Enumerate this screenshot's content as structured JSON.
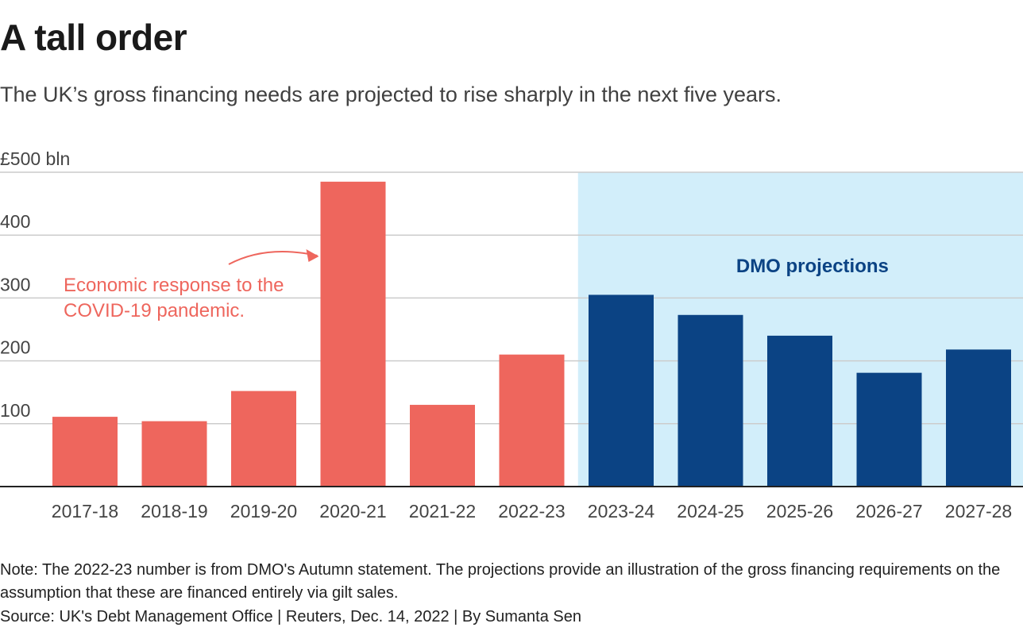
{
  "title": "A tall order",
  "subtitle": "The UK’s gross financing needs are projected to rise sharply in the next five years.",
  "note": "Note: The 2022-23 number is from DMO's Autumn statement. The projections provide an illustration of the gross financing requirements on the assumption that these are financed entirely via gilt sales.",
  "source": "Source: UK's Debt Management Office | Reuters, Dec. 14, 2022 | By Sumanta Sen",
  "colors": {
    "actual": "#ee665d",
    "projection": "#0b4384",
    "projection_band": "#d2eefa",
    "annotation": "#ee665d",
    "grid": "#cccccc",
    "axis": "#222222",
    "band_label": "#0b4384"
  },
  "chart_data": {
    "type": "bar",
    "categories": [
      "2017-18",
      "2018-19",
      "2019-20",
      "2020-21",
      "2021-22",
      "2022-23",
      "2023-24",
      "2024-25",
      "2025-26",
      "2026-27",
      "2027-28"
    ],
    "values": [
      111,
      104,
      152,
      485,
      130,
      210,
      305,
      273,
      240,
      181,
      218
    ],
    "projection_start_index": 6,
    "ylim": [
      0,
      500
    ],
    "yticks": [
      100,
      200,
      300,
      400,
      500
    ],
    "ytick_labels": [
      "100",
      "200",
      "300",
      "400",
      "£500 bln"
    ],
    "grid": true,
    "band_label": "DMO projections",
    "annotation": {
      "lines": [
        "Economic response to the",
        "COVID-19 pandemic."
      ],
      "target_category": "2020-21"
    }
  }
}
